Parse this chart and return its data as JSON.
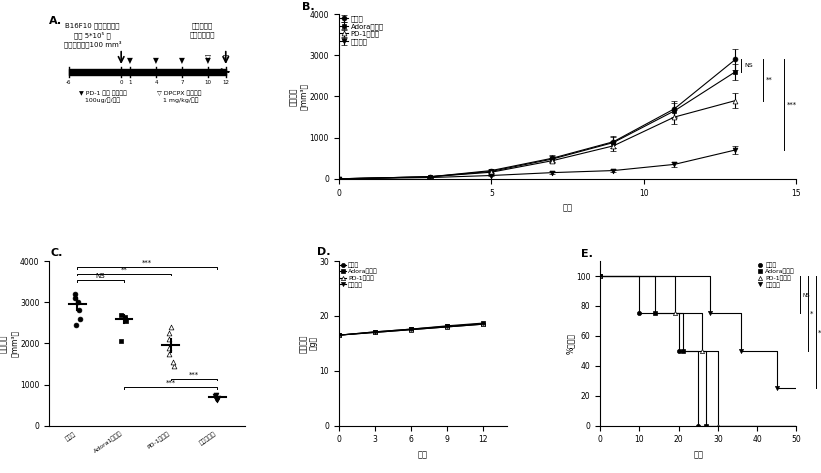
{
  "panel_A": {
    "title": "A.",
    "ticks": [
      -6,
      0,
      1,
      4,
      7,
      10,
      12
    ],
    "text_left1": "B16F10 野生型细胞株",
    "text_left2": "注射 5*10⁵ 个",
    "text_left3": "肿瘤生长量约100 mm³",
    "text_right1": "获取肿瘤并",
    "text_right2": "进行数据分析",
    "label1a": "▼ PD-1 单抗 腹腔注射",
    "label1b": "100ug/次/小鼠",
    "label2a": "▽ DPCPX 腹腔注射",
    "label2b": "1 mg/kg/小鼠"
  },
  "panel_B": {
    "title": "B.",
    "xlabel": "天数",
    "ylabel": "肿瘤体积\n（mm³）",
    "xlim": [
      0,
      15
    ],
    "ylim": [
      0,
      4000
    ],
    "yticks": [
      0,
      1000,
      2000,
      3000,
      4000
    ],
    "xticks": [
      0,
      5,
      10,
      15
    ],
    "groups": [
      "对照组",
      "Adora抑制组",
      "PD-1单抗组",
      "联合预组"
    ],
    "days": [
      0,
      3,
      5,
      7,
      9,
      11,
      13
    ],
    "control": [
      0,
      50,
      200,
      500,
      900,
      1700,
      2900
    ],
    "adora": [
      0,
      50,
      180,
      480,
      880,
      1650,
      2600
    ],
    "pd1": [
      0,
      50,
      160,
      440,
      800,
      1500,
      1900
    ],
    "combo": [
      0,
      30,
      80,
      150,
      200,
      350,
      700
    ],
    "control_err": [
      0,
      20,
      50,
      80,
      150,
      200,
      250
    ],
    "adora_err": [
      0,
      20,
      45,
      70,
      130,
      180,
      200
    ],
    "pd1_err": [
      0,
      20,
      40,
      60,
      120,
      160,
      180
    ],
    "combo_err": [
      0,
      10,
      20,
      30,
      40,
      60,
      100
    ]
  },
  "panel_C": {
    "title": "C.",
    "ylabel": "肿瘤体积\n（mm³）",
    "ylim": [
      0,
      4000
    ],
    "yticks": [
      0,
      1000,
      2000,
      3000,
      4000
    ],
    "categories": [
      "对照组",
      "Adora1抑制组",
      "PD-1单抗组",
      "联合干预组"
    ],
    "means": [
      2950,
      2600,
      1950,
      700
    ],
    "sems": [
      150,
      100,
      150,
      80
    ],
    "control_pts": [
      2450,
      2600,
      2800,
      3000,
      3100,
      3200
    ],
    "adora_pts": [
      2050,
      2550,
      2600,
      2650,
      2700
    ],
    "pd1_pts": [
      1450,
      1550,
      1750,
      1900,
      2100,
      2250,
      2400
    ],
    "combo_pts": [
      620,
      650,
      680,
      720,
      750
    ]
  },
  "panel_D": {
    "title": "D.",
    "xlabel": "天数",
    "ylabel": "小鼠体重\n（g）",
    "xlim": [
      0,
      14
    ],
    "ylim": [
      0,
      30
    ],
    "yticks": [
      0,
      10,
      20,
      30
    ],
    "xticks": [
      0,
      3,
      6,
      9,
      12
    ],
    "groups": [
      "对照组",
      "Adora抑制组",
      "PD-1单抗组",
      "联合预组"
    ],
    "days": [
      0,
      3,
      6,
      9,
      12
    ],
    "control": [
      16.5,
      17.0,
      17.5,
      18.0,
      18.5
    ],
    "adora": [
      16.5,
      17.1,
      17.6,
      18.1,
      18.6
    ],
    "pd1": [
      16.5,
      17.0,
      17.5,
      18.0,
      18.5
    ],
    "combo": [
      16.5,
      17.1,
      17.6,
      18.2,
      18.7
    ]
  },
  "panel_E": {
    "title": "E.",
    "xlabel": "天数",
    "ylabel": "%存活率",
    "xlim": [
      0,
      50
    ],
    "ylim": [
      0,
      110
    ],
    "yticks": [
      60,
      80,
      100
    ],
    "xticks": [
      0,
      10,
      20,
      30,
      40,
      50
    ],
    "groups": [
      "对照组",
      "Adora抑制组",
      "PD-1单抗组",
      "联合预组"
    ],
    "control_x": [
      0,
      10,
      10,
      20,
      20,
      25,
      25,
      50
    ],
    "control_y": [
      100,
      100,
      75,
      75,
      50,
      50,
      0,
      0
    ],
    "adora_x": [
      0,
      14,
      14,
      21,
      21,
      27,
      27,
      50
    ],
    "adora_y": [
      100,
      100,
      75,
      75,
      50,
      50,
      0,
      0
    ],
    "pd1_x": [
      0,
      19,
      19,
      26,
      26,
      30,
      30,
      50
    ],
    "pd1_y": [
      100,
      100,
      75,
      75,
      50,
      50,
      0,
      0
    ],
    "combo_x": [
      0,
      28,
      28,
      36,
      36,
      45,
      45,
      50
    ],
    "combo_y": [
      100,
      100,
      75,
      75,
      50,
      50,
      25,
      25
    ]
  }
}
